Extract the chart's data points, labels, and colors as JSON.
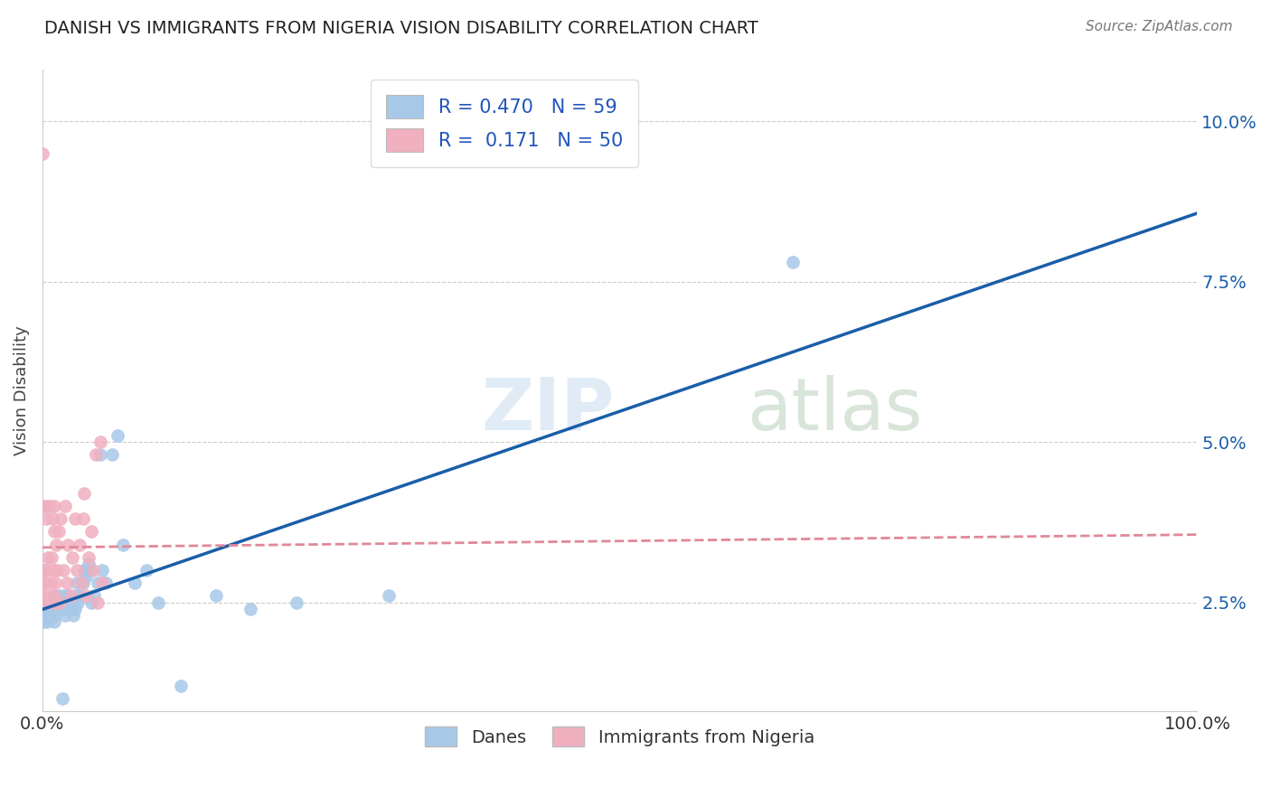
{
  "title": "DANISH VS IMMIGRANTS FROM NIGERIA VISION DISABILITY CORRELATION CHART",
  "source": "Source: ZipAtlas.com",
  "ylabel": "Vision Disability",
  "xlim": [
    0,
    1
  ],
  "ylim": [
    0.008,
    0.108
  ],
  "yticks": [
    0.025,
    0.05,
    0.075,
    0.1
  ],
  "ytick_labels": [
    "2.5%",
    "5.0%",
    "7.5%",
    "10.0%"
  ],
  "xticks": [
    0,
    0.25,
    0.5,
    0.75,
    1.0
  ],
  "xtick_labels": [
    "0.0%",
    "",
    "",
    "",
    "100.0%"
  ],
  "legend_r1": "R = 0.470",
  "legend_n1": "N = 59",
  "legend_r2": "R =  0.171",
  "legend_n2": "N = 50",
  "danes_scatter_color": "#A8C8E8",
  "nigeria_scatter_color": "#F0B0C0",
  "danes_line_color": "#1A5EA8",
  "nigeria_line_color": "#E08898",
  "background_color": "#FFFFFF",
  "grid_color": "#CCCCCC",
  "watermark": "ZIPatlas",
  "danes_x": [
    0.001,
    0.002,
    0.003,
    0.004,
    0.005,
    0.006,
    0.007,
    0.008,
    0.009,
    0.01,
    0.01,
    0.01,
    0.01,
    0.012,
    0.013,
    0.015,
    0.015,
    0.016,
    0.017,
    0.018,
    0.019,
    0.02,
    0.02,
    0.02,
    0.02,
    0.022,
    0.023,
    0.024,
    0.025,
    0.026,
    0.027,
    0.028,
    0.03,
    0.03,
    0.031,
    0.032,
    0.035,
    0.036,
    0.038,
    0.04,
    0.041,
    0.042,
    0.045,
    0.048,
    0.05,
    0.052,
    0.055,
    0.06,
    0.065,
    0.07,
    0.08,
    0.09,
    0.1,
    0.12,
    0.15,
    0.18,
    0.22,
    0.3,
    0.65
  ],
  "danes_y": [
    0.022,
    0.024,
    0.023,
    0.022,
    0.025,
    0.024,
    0.023,
    0.025,
    0.024,
    0.022,
    0.024,
    0.026,
    0.023,
    0.025,
    0.024,
    0.026,
    0.025,
    0.024,
    0.01,
    0.025,
    0.024,
    0.023,
    0.024,
    0.025,
    0.026,
    0.024,
    0.026,
    0.025,
    0.024,
    0.025,
    0.023,
    0.024,
    0.026,
    0.028,
    0.025,
    0.026,
    0.028,
    0.03,
    0.029,
    0.031,
    0.03,
    0.025,
    0.026,
    0.028,
    0.048,
    0.03,
    0.028,
    0.048,
    0.051,
    0.034,
    0.028,
    0.03,
    0.025,
    0.012,
    0.026,
    0.024,
    0.025,
    0.026,
    0.078
  ],
  "nigeria_x": [
    0.0,
    0.0,
    0.0,
    0.0,
    0.001,
    0.001,
    0.002,
    0.002,
    0.003,
    0.003,
    0.004,
    0.004,
    0.005,
    0.005,
    0.006,
    0.007,
    0.008,
    0.008,
    0.009,
    0.01,
    0.01,
    0.01,
    0.01,
    0.01,
    0.011,
    0.012,
    0.013,
    0.014,
    0.015,
    0.016,
    0.018,
    0.02,
    0.021,
    0.022,
    0.025,
    0.026,
    0.028,
    0.03,
    0.032,
    0.034,
    0.035,
    0.036,
    0.038,
    0.04,
    0.042,
    0.044,
    0.046,
    0.048,
    0.05,
    0.052
  ],
  "nigeria_y": [
    0.028,
    0.03,
    0.04,
    0.095,
    0.025,
    0.026,
    0.028,
    0.03,
    0.038,
    0.04,
    0.025,
    0.03,
    0.026,
    0.032,
    0.04,
    0.028,
    0.025,
    0.032,
    0.038,
    0.025,
    0.026,
    0.03,
    0.036,
    0.04,
    0.028,
    0.034,
    0.03,
    0.036,
    0.025,
    0.038,
    0.03,
    0.04,
    0.028,
    0.034,
    0.026,
    0.032,
    0.038,
    0.03,
    0.034,
    0.028,
    0.038,
    0.042,
    0.026,
    0.032,
    0.036,
    0.03,
    0.048,
    0.025,
    0.05,
    0.028
  ]
}
